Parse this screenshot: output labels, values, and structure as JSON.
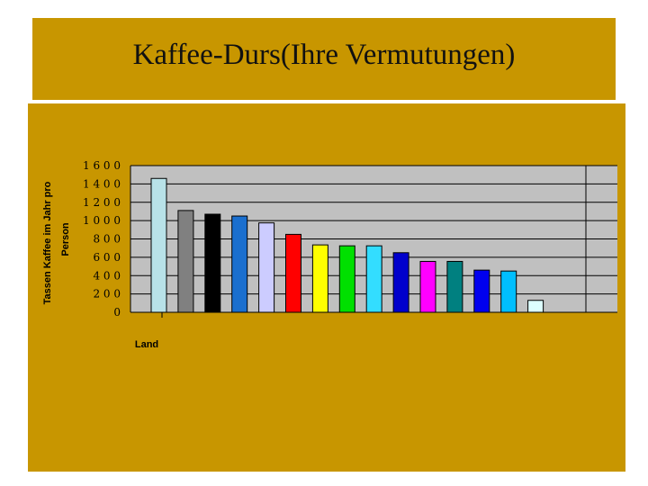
{
  "slide": {
    "title": "Kaffee-Durs(Ihre Vermutungen)"
  },
  "colors": {
    "background": "#c89600",
    "plot_area": "#c0c0c0",
    "gridline": "#000000"
  },
  "chart_data": {
    "type": "bar",
    "title": "",
    "ylabel_line1": "Tassen Kaffee im Jahr pro",
    "ylabel_line2": "Person",
    "xlabel": "Land",
    "ylim": [
      0,
      1600
    ],
    "yticks": [
      "1 6 0 0",
      "1 4 0 0",
      "1 2 0 0",
      "1 0 0 0",
      "8 0 0",
      "6 0 0",
      "4 0 0",
      "2 0 0",
      "0"
    ],
    "ytick_values": [
      1600,
      1400,
      1200,
      1000,
      800,
      600,
      400,
      200,
      0
    ],
    "grid": true,
    "legend": "none",
    "values": [
      1460,
      1110,
      1070,
      1050,
      975,
      850,
      735,
      725,
      725,
      650,
      555,
      555,
      460,
      450,
      130
    ],
    "bar_colors": [
      "#b8e2e8",
      "#808080",
      "#000000",
      "#1a6fcf",
      "#ccccff",
      "#ff0000",
      "#ffff00",
      "#00e000",
      "#33ddff",
      "#0000cc",
      "#ff00ff",
      "#008080",
      "#0000ee",
      "#00bfff",
      "#ddffff"
    ]
  }
}
